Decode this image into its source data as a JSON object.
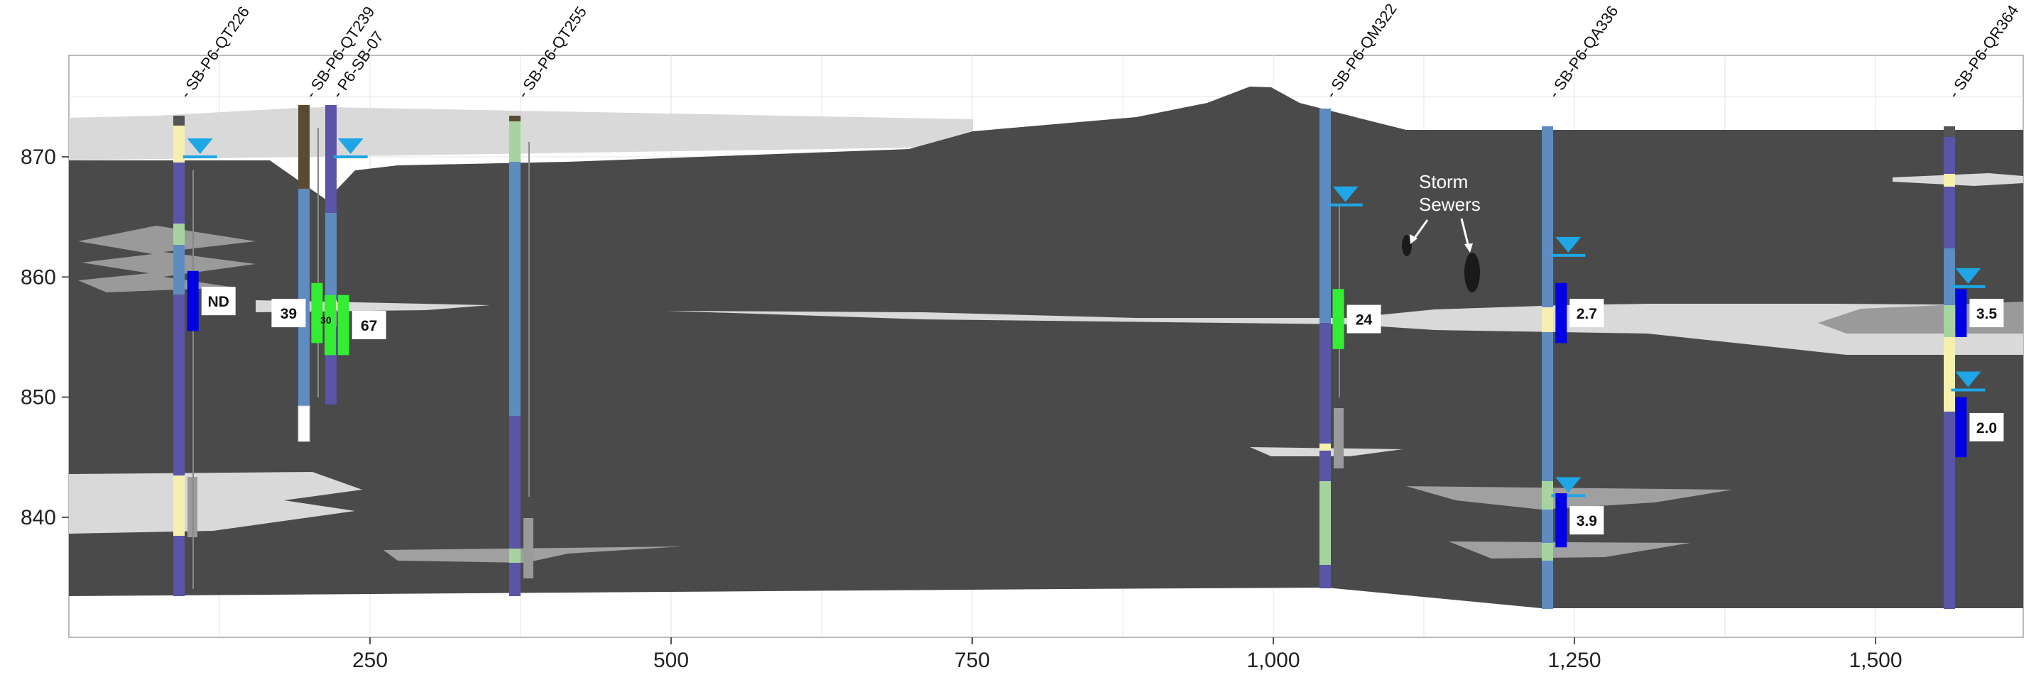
{
  "colors": {
    "soil_main": "#4a4a4a",
    "soil_light": "#d9d9d9",
    "soil_medium": "#a0a0a0",
    "sand_yellow": "#f5f0b0",
    "fill_brown": "#5b4a33",
    "casing_blue": "#5f8cc0",
    "screen_purple": "#5a55a6",
    "green_layer": "#a7d3a0",
    "water_marker": "#1ea6e6",
    "result_blue": "#0000e6",
    "result_green": "#33ee33",
    "sample_gray": "#9a9a9a"
  },
  "axes": {
    "x_ticks": [
      {
        "value": 250,
        "label": "250"
      },
      {
        "value": 500,
        "label": "500"
      },
      {
        "value": 750,
        "label": "750"
      },
      {
        "value": 1000,
        "label": "1,000"
      },
      {
        "value": 1250,
        "label": "1,250"
      },
      {
        "value": 1500,
        "label": "1,500"
      }
    ],
    "y_ticks": [
      {
        "value": 840,
        "label": "840"
      },
      {
        "value": 850,
        "label": "850"
      },
      {
        "value": 860,
        "label": "860"
      },
      {
        "value": 870,
        "label": "870"
      }
    ]
  },
  "borings": [
    {
      "name": "- SB-P6-QT226",
      "x": 92
    },
    {
      "name": "- SB-P6-QT239",
      "x": 196
    },
    {
      "name": "- P6-SB-07",
      "x": 218
    },
    {
      "name": "- SB-P6-QT255",
      "x": 372
    },
    {
      "name": "- SB-P6-QM322",
      "x": 1043
    },
    {
      "name": "- SB-P6-QA336",
      "x": 1228
    },
    {
      "name": "- SB-P6-QR364",
      "x": 1560
    }
  ],
  "results": [
    {
      "label": "ND",
      "color": "blue",
      "x": 103,
      "top": 860.5,
      "bottom": 855.5
    },
    {
      "label": "39",
      "color": "green",
      "x": 206,
      "top": 859.5,
      "bottom": 854.5
    },
    {
      "label": "30",
      "color": "green",
      "x": 217,
      "top": 858.5,
      "bottom": 853.5
    },
    {
      "label": "67",
      "color": "green",
      "x": 228,
      "top": 858.5,
      "bottom": 853.5
    },
    {
      "label": "24",
      "color": "green",
      "x": 1054,
      "top": 859,
      "bottom": 854
    },
    {
      "label": "2.7",
      "color": "blue",
      "x": 1239,
      "top": 859.5,
      "bottom": 854.5
    },
    {
      "label": "3.9",
      "color": "blue",
      "x": 1239,
      "top": 842,
      "bottom": 837.5
    },
    {
      "label": "3.5",
      "color": "blue",
      "x": 1571,
      "top": 859,
      "bottom": 855
    },
    {
      "label": "2.0",
      "color": "blue",
      "x": 1571,
      "top": 850,
      "bottom": 845
    }
  ],
  "water_levels": [
    {
      "x": 103,
      "elev": 870
    },
    {
      "x": 228,
      "elev": 870
    },
    {
      "x": 1054,
      "elev": 866
    },
    {
      "x": 1239,
      "elev": 861.8
    },
    {
      "x": 1239,
      "elev": 841.8
    },
    {
      "x": 1571,
      "elev": 859.2
    },
    {
      "x": 1571,
      "elev": 850.6
    }
  ],
  "annotation": {
    "line1": "Storm",
    "line2": "Sewers"
  }
}
